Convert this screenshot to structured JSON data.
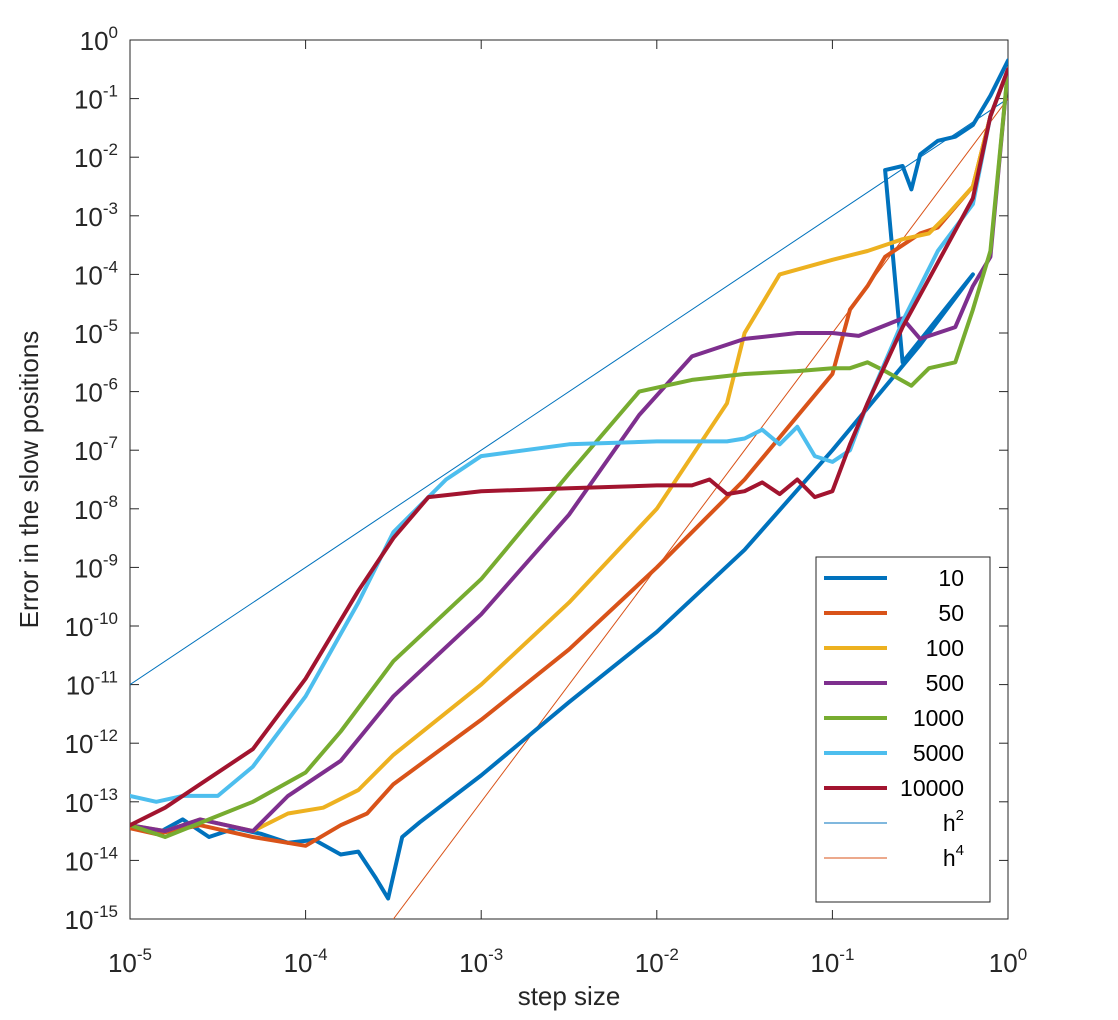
{
  "chart_data": {
    "type": "line",
    "xscale": "log",
    "yscale": "log",
    "xlim": [
      1e-05,
      1
    ],
    "ylim": [
      1e-15,
      1
    ],
    "xlabel": "step size",
    "ylabel": "Error in the slow positions",
    "x_ticks": [
      {
        "base": "10",
        "exp": "-5"
      },
      {
        "base": "10",
        "exp": "-4"
      },
      {
        "base": "10",
        "exp": "-3"
      },
      {
        "base": "10",
        "exp": "-2"
      },
      {
        "base": "10",
        "exp": "-1"
      },
      {
        "base": "10",
        "exp": "0"
      }
    ],
    "y_ticks": [
      {
        "base": "10",
        "exp": "-15"
      },
      {
        "base": "10",
        "exp": "-14"
      },
      {
        "base": "10",
        "exp": "-13"
      },
      {
        "base": "10",
        "exp": "-12"
      },
      {
        "base": "10",
        "exp": "-11"
      },
      {
        "base": "10",
        "exp": "-10"
      },
      {
        "base": "10",
        "exp": "-9"
      },
      {
        "base": "10",
        "exp": "-8"
      },
      {
        "base": "10",
        "exp": "-7"
      },
      {
        "base": "10",
        "exp": "-6"
      },
      {
        "base": "10",
        "exp": "-5"
      },
      {
        "base": "10",
        "exp": "-4"
      },
      {
        "base": "10",
        "exp": "-3"
      },
      {
        "base": "10",
        "exp": "-2"
      },
      {
        "base": "10",
        "exp": "-1"
      },
      {
        "base": "10",
        "exp": "0"
      }
    ],
    "legend_position": "bottom-right",
    "series": [
      {
        "name": "10",
        "color": "#0072BD",
        "width": "thick",
        "log_points": [
          [
            -5,
            -13.4
          ],
          [
            -4.85,
            -13.55
          ],
          [
            -4.7,
            -13.3
          ],
          [
            -4.55,
            -13.6
          ],
          [
            -4.4,
            -13.45
          ],
          [
            -4.25,
            -13.55
          ],
          [
            -4.1,
            -13.7
          ],
          [
            -3.95,
            -13.65
          ],
          [
            -3.8,
            -13.9
          ],
          [
            -3.7,
            -13.85
          ],
          [
            -3.6,
            -14.3
          ],
          [
            -3.53,
            -14.65
          ],
          [
            -3.45,
            -13.6
          ],
          [
            -3.35,
            -13.35
          ],
          [
            -3.0,
            -12.55
          ],
          [
            -2.5,
            -11.3
          ],
          [
            -2.0,
            -10.1
          ],
          [
            -1.5,
            -8.7
          ],
          [
            -1.0,
            -7.0
          ],
          [
            -0.5,
            -5.2
          ],
          [
            -0.2,
            -4.0
          ],
          [
            -0.6,
            -5.5
          ],
          [
            -0.7,
            -2.22
          ],
          [
            -0.6,
            -2.15
          ],
          [
            -0.55,
            -2.55
          ],
          [
            -0.5,
            -1.95
          ],
          [
            -0.4,
            -1.72
          ],
          [
            -0.3,
            -1.65
          ],
          [
            -0.2,
            -1.45
          ],
          [
            -0.1,
            -0.95
          ],
          [
            0.0,
            -0.35
          ]
        ]
      },
      {
        "name": "50",
        "color": "#D95319",
        "width": "thick",
        "log_points": [
          [
            -5,
            -13.45
          ],
          [
            -4.85,
            -13.55
          ],
          [
            -4.6,
            -13.4
          ],
          [
            -4.3,
            -13.6
          ],
          [
            -4.0,
            -13.75
          ],
          [
            -3.8,
            -13.4
          ],
          [
            -3.65,
            -13.2
          ],
          [
            -3.5,
            -12.7
          ],
          [
            -3.0,
            -11.6
          ],
          [
            -2.5,
            -10.4
          ],
          [
            -2.0,
            -9.0
          ],
          [
            -1.5,
            -7.5
          ],
          [
            -1.0,
            -5.7
          ],
          [
            -0.9,
            -4.6
          ],
          [
            -0.8,
            -4.2
          ],
          [
            -0.7,
            -3.7
          ],
          [
            -0.5,
            -3.3
          ],
          [
            -0.4,
            -3.2
          ],
          [
            -0.3,
            -2.85
          ],
          [
            -0.2,
            -2.5
          ],
          [
            -0.1,
            -1.3
          ],
          [
            0.0,
            -0.5
          ]
        ]
      },
      {
        "name": "100",
        "color": "#EDB120",
        "width": "thick",
        "log_points": [
          [
            -5,
            -13.4
          ],
          [
            -4.8,
            -13.5
          ],
          [
            -4.6,
            -13.3
          ],
          [
            -4.3,
            -13.5
          ],
          [
            -4.1,
            -13.2
          ],
          [
            -3.9,
            -13.1
          ],
          [
            -3.7,
            -12.8
          ],
          [
            -3.5,
            -12.2
          ],
          [
            -3.0,
            -11.0
          ],
          [
            -2.5,
            -9.6
          ],
          [
            -2.0,
            -8.0
          ],
          [
            -1.6,
            -6.2
          ],
          [
            -1.5,
            -5.0
          ],
          [
            -1.4,
            -4.5
          ],
          [
            -1.3,
            -4.0
          ],
          [
            -1.0,
            -3.75
          ],
          [
            -0.8,
            -3.6
          ],
          [
            -0.6,
            -3.4
          ],
          [
            -0.45,
            -3.3
          ],
          [
            -0.35,
            -3.0
          ],
          [
            -0.2,
            -2.5
          ],
          [
            -0.1,
            -1.3
          ],
          [
            0.0,
            -0.5
          ]
        ]
      },
      {
        "name": "500",
        "color": "#7E2F8E",
        "width": "thick",
        "log_points": [
          [
            -5,
            -13.4
          ],
          [
            -4.8,
            -13.5
          ],
          [
            -4.6,
            -13.3
          ],
          [
            -4.3,
            -13.5
          ],
          [
            -4.1,
            -12.9
          ],
          [
            -3.8,
            -12.3
          ],
          [
            -3.5,
            -11.2
          ],
          [
            -3.0,
            -9.8
          ],
          [
            -2.5,
            -8.1
          ],
          [
            -2.1,
            -6.4
          ],
          [
            -1.8,
            -5.4
          ],
          [
            -1.5,
            -5.1
          ],
          [
            -1.2,
            -5.0
          ],
          [
            -1.0,
            -5.0
          ],
          [
            -0.85,
            -5.05
          ],
          [
            -0.6,
            -4.75
          ],
          [
            -0.5,
            -5.1
          ],
          [
            -0.3,
            -4.9
          ],
          [
            -0.2,
            -4.2
          ],
          [
            -0.1,
            -3.7
          ],
          [
            0.0,
            -0.5
          ]
        ]
      },
      {
        "name": "1000",
        "color": "#77AC30",
        "width": "thick",
        "log_points": [
          [
            -5,
            -13.4
          ],
          [
            -4.8,
            -13.6
          ],
          [
            -4.55,
            -13.3
          ],
          [
            -4.3,
            -13.0
          ],
          [
            -4.0,
            -12.5
          ],
          [
            -3.8,
            -11.8
          ],
          [
            -3.5,
            -10.6
          ],
          [
            -3.0,
            -9.2
          ],
          [
            -2.5,
            -7.4
          ],
          [
            -2.1,
            -6.0
          ],
          [
            -1.8,
            -5.8
          ],
          [
            -1.5,
            -5.7
          ],
          [
            -1.2,
            -5.65
          ],
          [
            -1.0,
            -5.6
          ],
          [
            -0.9,
            -5.6
          ],
          [
            -0.8,
            -5.5
          ],
          [
            -0.7,
            -5.65
          ],
          [
            -0.55,
            -5.9
          ],
          [
            -0.45,
            -5.6
          ],
          [
            -0.3,
            -5.5
          ],
          [
            -0.2,
            -4.6
          ],
          [
            -0.1,
            -3.6
          ],
          [
            0.0,
            -0.5
          ]
        ]
      },
      {
        "name": "5000",
        "color": "#4DBEEE",
        "width": "thick",
        "log_points": [
          [
            -5,
            -12.9
          ],
          [
            -4.85,
            -13.0
          ],
          [
            -4.7,
            -12.9
          ],
          [
            -4.5,
            -12.9
          ],
          [
            -4.3,
            -12.4
          ],
          [
            -4.0,
            -11.2
          ],
          [
            -3.7,
            -9.6
          ],
          [
            -3.5,
            -8.4
          ],
          [
            -3.2,
            -7.5
          ],
          [
            -3.0,
            -7.1
          ],
          [
            -2.5,
            -6.9
          ],
          [
            -2.0,
            -6.85
          ],
          [
            -1.8,
            -6.85
          ],
          [
            -1.7,
            -6.85
          ],
          [
            -1.6,
            -6.85
          ],
          [
            -1.5,
            -6.8
          ],
          [
            -1.4,
            -6.65
          ],
          [
            -1.3,
            -6.9
          ],
          [
            -1.2,
            -6.6
          ],
          [
            -1.1,
            -7.1
          ],
          [
            -1.0,
            -7.2
          ],
          [
            -0.9,
            -7.0
          ],
          [
            -0.8,
            -6.2
          ],
          [
            -0.6,
            -4.8
          ],
          [
            -0.4,
            -3.6
          ],
          [
            -0.2,
            -2.8
          ],
          [
            -0.1,
            -1.3
          ],
          [
            0.0,
            -0.5
          ]
        ]
      },
      {
        "name": "10000",
        "color": "#A2142F",
        "width": "thick",
        "log_points": [
          [
            -5,
            -13.4
          ],
          [
            -4.8,
            -13.1
          ],
          [
            -4.6,
            -12.7
          ],
          [
            -4.3,
            -12.1
          ],
          [
            -4.0,
            -10.9
          ],
          [
            -3.7,
            -9.4
          ],
          [
            -3.5,
            -8.5
          ],
          [
            -3.3,
            -7.8
          ],
          [
            -3.0,
            -7.7
          ],
          [
            -2.5,
            -7.65
          ],
          [
            -2.0,
            -7.6
          ],
          [
            -1.8,
            -7.6
          ],
          [
            -1.7,
            -7.5
          ],
          [
            -1.6,
            -7.75
          ],
          [
            -1.5,
            -7.7
          ],
          [
            -1.4,
            -7.55
          ],
          [
            -1.3,
            -7.75
          ],
          [
            -1.2,
            -7.5
          ],
          [
            -1.1,
            -7.8
          ],
          [
            -1.0,
            -7.7
          ],
          [
            -0.9,
            -6.9
          ],
          [
            -0.8,
            -6.2
          ],
          [
            -0.6,
            -4.9
          ],
          [
            -0.4,
            -3.8
          ],
          [
            -0.2,
            -2.7
          ],
          [
            -0.1,
            -1.3
          ],
          [
            0.0,
            -0.5
          ]
        ]
      },
      {
        "name": "h",
        "sup": "2",
        "color": "#0072BD",
        "width": "thin",
        "log_points": [
          [
            -5,
            -11
          ],
          [
            0,
            -1
          ]
        ]
      },
      {
        "name": "h",
        "sup": "4",
        "color": "#D95319",
        "width": "thin",
        "log_points": [
          [
            -3.5,
            -15
          ],
          [
            0,
            -1
          ]
        ]
      }
    ]
  }
}
